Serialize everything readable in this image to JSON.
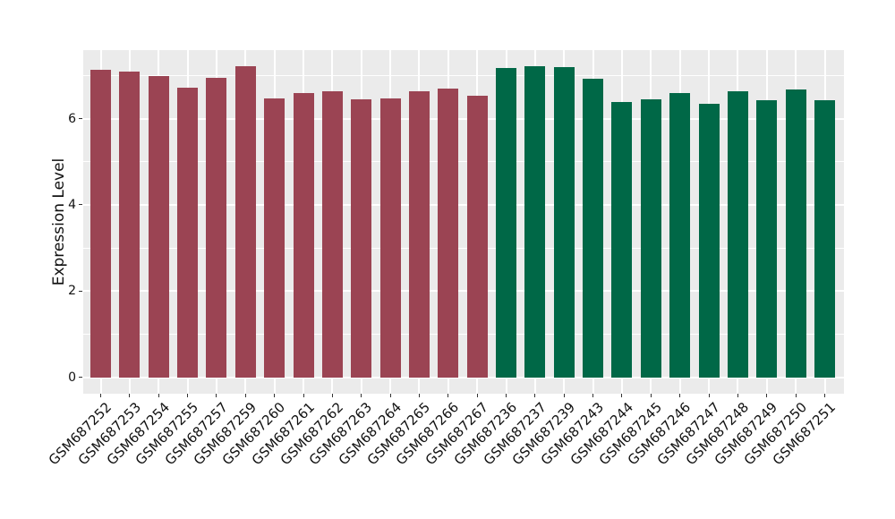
{
  "chart_data": {
    "type": "bar",
    "title": "",
    "xlabel": "",
    "ylabel": "Expression Level",
    "categories": [
      "GSM687252",
      "GSM687253",
      "GSM687254",
      "GSM687255",
      "GSM687257",
      "GSM687259",
      "GSM687260",
      "GSM687261",
      "GSM687262",
      "GSM687263",
      "GSM687264",
      "GSM687265",
      "GSM687266",
      "GSM687267",
      "GSM687236",
      "GSM687237",
      "GSM687239",
      "GSM687243",
      "GSM687244",
      "GSM687245",
      "GSM687246",
      "GSM687247",
      "GSM687248",
      "GSM687249",
      "GSM687250",
      "GSM687251"
    ],
    "values": [
      7.14,
      7.1,
      6.99,
      6.71,
      6.94,
      7.21,
      6.47,
      6.6,
      6.64,
      6.45,
      6.47,
      6.63,
      6.7,
      6.53,
      7.17,
      7.21,
      7.2,
      6.93,
      6.39,
      6.45,
      6.59,
      6.34,
      6.63,
      6.43,
      6.67,
      6.43
    ],
    "group_of_bar": [
      0,
      0,
      0,
      0,
      0,
      0,
      0,
      0,
      0,
      0,
      0,
      0,
      0,
      0,
      1,
      1,
      1,
      1,
      1,
      1,
      1,
      1,
      1,
      1,
      1,
      1
    ],
    "group_colors": [
      "#9B4453",
      "#006847"
    ],
    "yticks": [
      0,
      2,
      4,
      6
    ],
    "yticks_minor": [
      1,
      3,
      5,
      7
    ],
    "ylim": [
      -0.37,
      7.59
    ],
    "grid": "on",
    "legend_position": "none",
    "panel_background": "#EBEBEB",
    "gridline_color": "#ffffff"
  }
}
